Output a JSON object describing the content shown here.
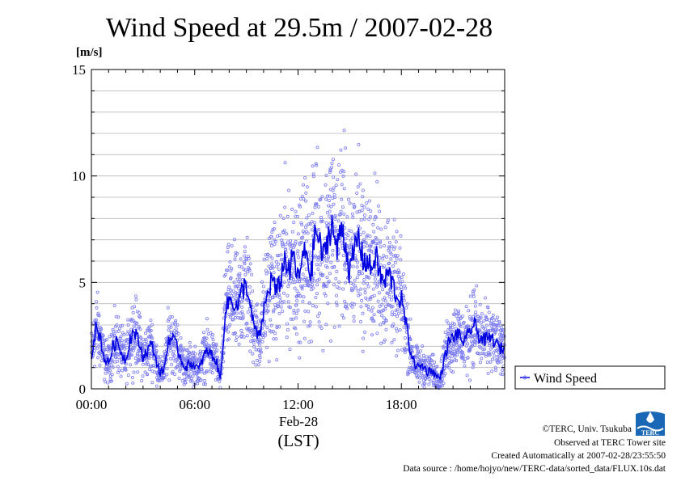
{
  "page": {
    "title": "Wind Speed at 29.5m / 2007-02-28",
    "unit_label": "[m/s]",
    "date_label": "Feb-28",
    "timezone_label": "(LST)",
    "legend_label": "Wind Speed",
    "credits": [
      "©TERC, Univ. Tsukuba",
      "Observed at TERC Tower site",
      "Created Automatically at 2007-02-28/23:55:50",
      "Data source : /home/hojyo/new/TERC-data/sorted_data/FLUX.10s.dat"
    ],
    "logo_text": "TERC"
  },
  "colors": {
    "line": "#0000e0",
    "points": "#7b7bf0",
    "grid": "#b8b8b8",
    "frame": "#000000",
    "logo": "#1a67b5"
  },
  "chart_data": {
    "type": "line",
    "title": "Wind Speed at 29.5m / 2007-02-28",
    "xlabel": "(LST)",
    "ylabel": "[m/s]",
    "xlim": [
      "00:00",
      "24:00"
    ],
    "ylim": [
      0,
      15
    ],
    "x_ticks": [
      "00:00",
      "06:00",
      "12:00",
      "18:00"
    ],
    "y_ticks": [
      0,
      5,
      10,
      15
    ],
    "grid": true,
    "legend_position": "right",
    "series": [
      {
        "name": "Wind Speed",
        "marker": "open-circles (10 s samples) + mean line",
        "x_hours": [
          0.0,
          0.25,
          0.5,
          0.75,
          1.0,
          1.25,
          1.5,
          1.75,
          2.0,
          2.25,
          2.5,
          2.75,
          3.0,
          3.25,
          3.5,
          3.75,
          4.0,
          4.25,
          4.5,
          4.75,
          5.0,
          5.25,
          5.5,
          5.75,
          6.0,
          6.25,
          6.5,
          6.75,
          7.0,
          7.25,
          7.5,
          7.75,
          8.0,
          8.25,
          8.5,
          8.75,
          9.0,
          9.25,
          9.5,
          9.75,
          10.0,
          10.25,
          10.5,
          10.75,
          11.0,
          11.25,
          11.5,
          11.75,
          12.0,
          12.25,
          12.5,
          12.75,
          13.0,
          13.25,
          13.5,
          13.75,
          14.0,
          14.25,
          14.5,
          14.75,
          15.0,
          15.25,
          15.5,
          15.75,
          16.0,
          16.25,
          16.5,
          16.75,
          17.0,
          17.25,
          17.5,
          17.75,
          18.0,
          18.25,
          18.5,
          18.75,
          19.0,
          19.25,
          19.5,
          19.75,
          20.0,
          20.25,
          20.5,
          20.75,
          21.0,
          21.25,
          21.5,
          21.75,
          22.0,
          22.25,
          22.5,
          22.75,
          23.0,
          23.25,
          23.5,
          23.75
        ],
        "values": [
          1.6,
          2.8,
          2.5,
          1.4,
          1.2,
          2.0,
          2.2,
          1.7,
          1.3,
          2.4,
          2.7,
          2.2,
          1.5,
          1.8,
          2.1,
          1.4,
          0.7,
          1.0,
          2.4,
          2.3,
          1.9,
          1.3,
          1.0,
          1.2,
          1.1,
          0.9,
          1.5,
          1.8,
          1.6,
          1.3,
          0.4,
          3.5,
          4.2,
          4.1,
          3.8,
          4.6,
          5.0,
          3.6,
          2.8,
          2.3,
          3.6,
          4.5,
          5.3,
          4.4,
          5.2,
          6.2,
          5.4,
          6.4,
          5.0,
          6.1,
          6.5,
          5.2,
          7.6,
          6.8,
          6.1,
          7.2,
          7.8,
          6.3,
          7.8,
          6.9,
          5.4,
          6.4,
          7.2,
          6.1,
          6.0,
          5.6,
          6.3,
          5.4,
          4.9,
          5.5,
          4.9,
          4.3,
          4.2,
          3.1,
          1.9,
          1.2,
          1.0,
          1.1,
          0.8,
          0.9,
          0.6,
          0.5,
          1.4,
          2.2,
          2.4,
          2.6,
          2.3,
          2.2,
          2.8,
          3.0,
          2.5,
          2.3,
          2.3,
          2.4,
          2.1,
          1.9
        ]
      }
    ]
  }
}
